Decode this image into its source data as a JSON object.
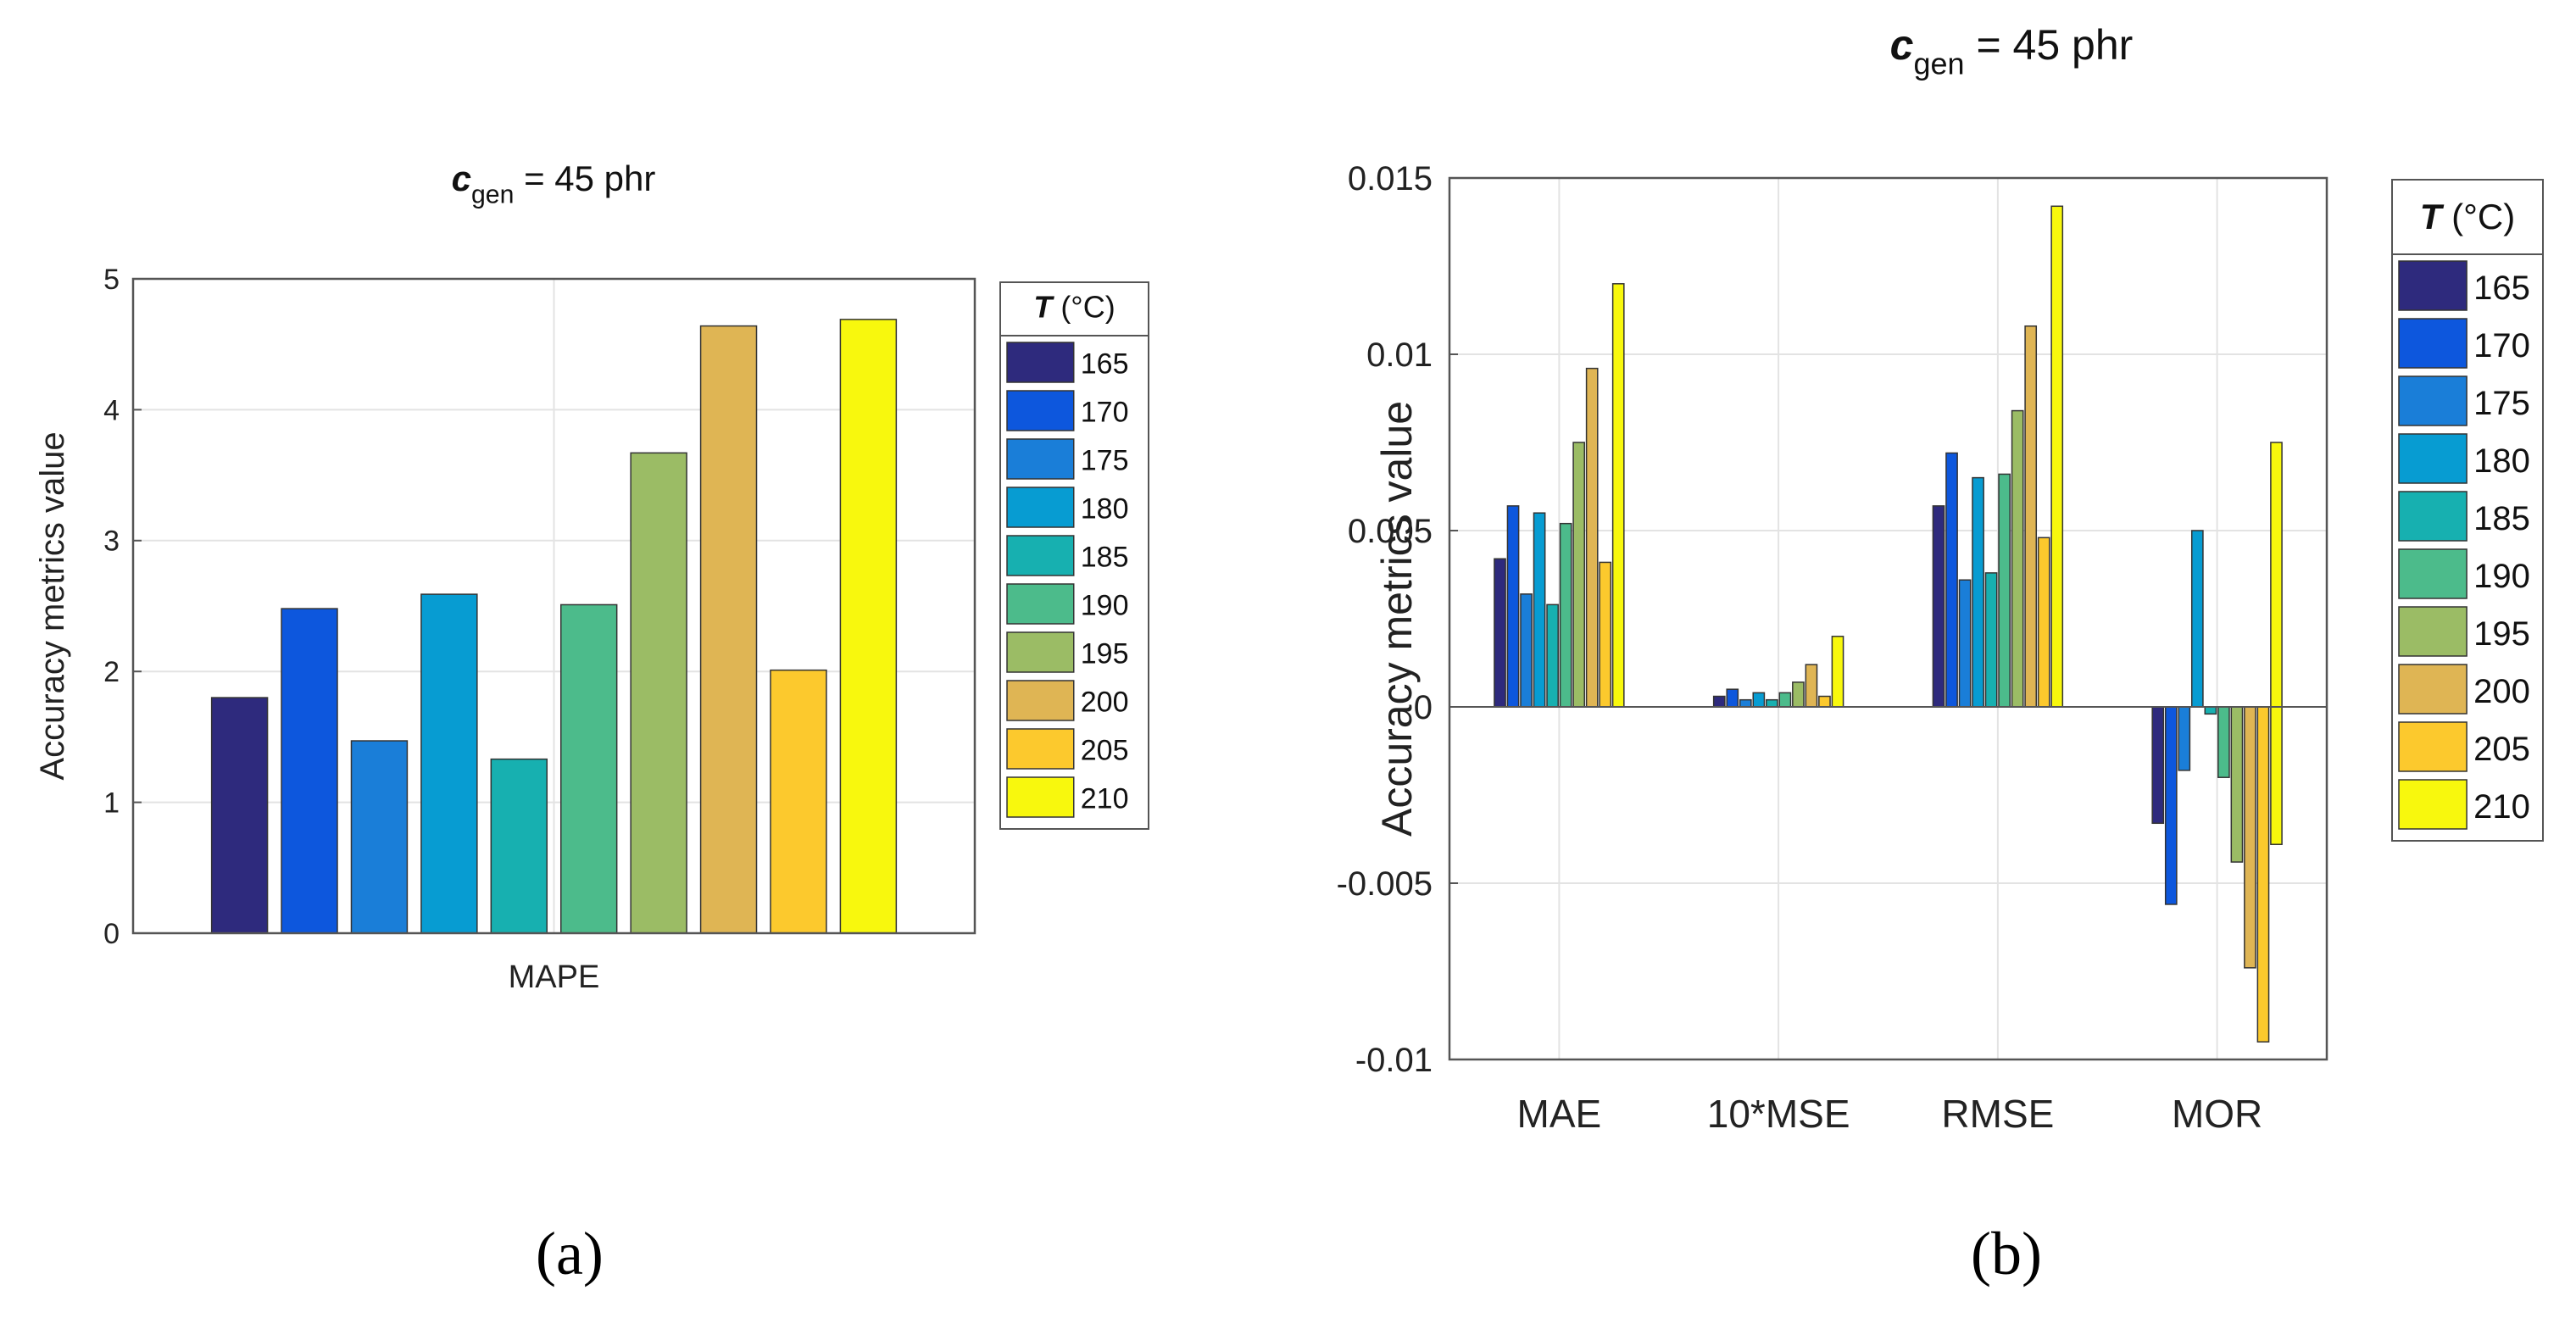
{
  "colors": [
    "#2e2a7d",
    "#0d57dd",
    "#1a7ed8",
    "#079cd2",
    "#17b0b0",
    "#4cbb8b",
    "#9bbc65",
    "#dfb554",
    "#fcc92d",
    "#f8f80d"
  ],
  "legend": {
    "title_var": "T",
    "title_unit": " (°C)",
    "entries": [
      "165",
      "170",
      "175",
      "180",
      "185",
      "190",
      "195",
      "200",
      "205",
      "210"
    ]
  },
  "chart_data": [
    {
      "type": "bar",
      "title": {
        "var": "c",
        "sub": "gen",
        "rest": " = 45  phr"
      },
      "ylabel": "Accuracy metrics value",
      "categories": [
        "MAPE"
      ],
      "ylim": [
        0,
        5
      ],
      "yticks": [
        "0",
        "1",
        "2",
        "3",
        "4",
        "5"
      ],
      "series": [
        {
          "name": "165",
          "values": [
            1.8
          ]
        },
        {
          "name": "170",
          "values": [
            2.48
          ]
        },
        {
          "name": "175",
          "values": [
            1.47
          ]
        },
        {
          "name": "180",
          "values": [
            2.59
          ]
        },
        {
          "name": "185",
          "values": [
            1.33
          ]
        },
        {
          "name": "190",
          "values": [
            2.51
          ]
        },
        {
          "name": "195",
          "values": [
            3.67
          ]
        },
        {
          "name": "200",
          "values": [
            4.64
          ]
        },
        {
          "name": "205",
          "values": [
            2.01
          ]
        },
        {
          "name": "210",
          "values": [
            4.69
          ]
        }
      ]
    },
    {
      "type": "bar",
      "title": {
        "var": "c",
        "sub": "gen",
        "rest": " = 45  phr"
      },
      "ylabel": "Accuracy metrics value",
      "categories": [
        "MAE",
        "10*MSE",
        "RMSE",
        "MOR"
      ],
      "ylim": [
        -0.01,
        0.015
      ],
      "yticks": [
        "-0.01",
        "-0.005",
        "0",
        "0.005",
        "0.01",
        "0.015"
      ],
      "series": [
        {
          "name": "165",
          "values": [
            0.0042,
            0.0003,
            0.0057,
            -0.0033
          ]
        },
        {
          "name": "170",
          "values": [
            0.0057,
            0.0005,
            0.0072,
            -0.0056
          ]
        },
        {
          "name": "175",
          "values": [
            0.0032,
            0.0002,
            0.0036,
            -0.0018
          ]
        },
        {
          "name": "180",
          "values": [
            0.0055,
            0.0004,
            0.0065,
            0.005
          ]
        },
        {
          "name": "185",
          "values": [
            0.0029,
            0.0002,
            0.0038,
            -0.0002
          ]
        },
        {
          "name": "190",
          "values": [
            0.0052,
            0.0004,
            0.0066,
            -0.002
          ]
        },
        {
          "name": "195",
          "values": [
            0.0075,
            0.0007,
            0.0084,
            -0.0044
          ]
        },
        {
          "name": "200",
          "values": [
            0.0096,
            0.0012,
            0.0108,
            -0.0074
          ]
        },
        {
          "name": "205",
          "values": [
            0.0041,
            0.0003,
            0.0048,
            -0.0095
          ]
        },
        {
          "name": "210",
          "values": [
            0.012,
            0.002,
            0.0142,
            -0.0039
          ]
        }
      ]
    }
  ],
  "captions": [
    "(a)",
    "(b)"
  ],
  "extra_series_210_MOR": 0.0075
}
